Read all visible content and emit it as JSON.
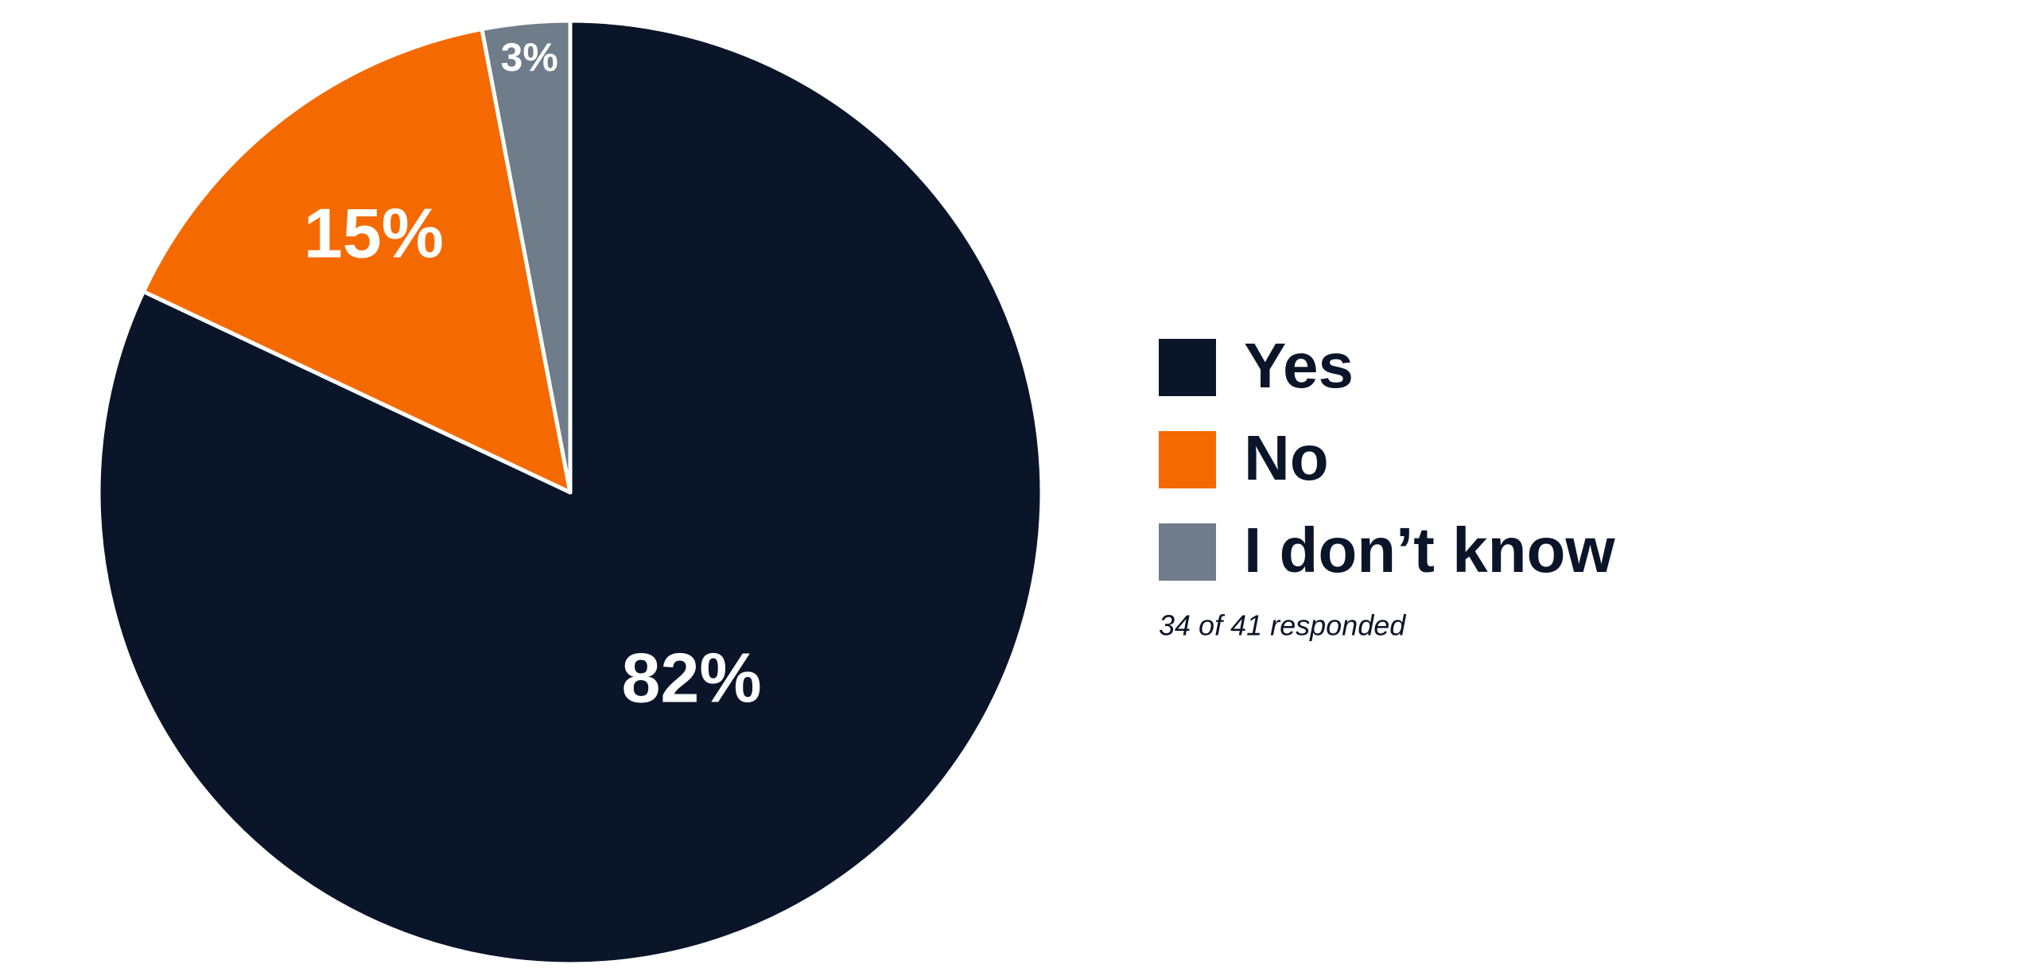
{
  "chart_data": {
    "type": "pie",
    "categories": [
      "Yes",
      "No",
      "I don’t know"
    ],
    "values": [
      82,
      15,
      3
    ],
    "value_labels": [
      "82%",
      "15%",
      "3%"
    ],
    "colors": [
      "#0b1529",
      "#f46a00",
      "#6f7c89"
    ],
    "note": "34 of 41 responded"
  }
}
